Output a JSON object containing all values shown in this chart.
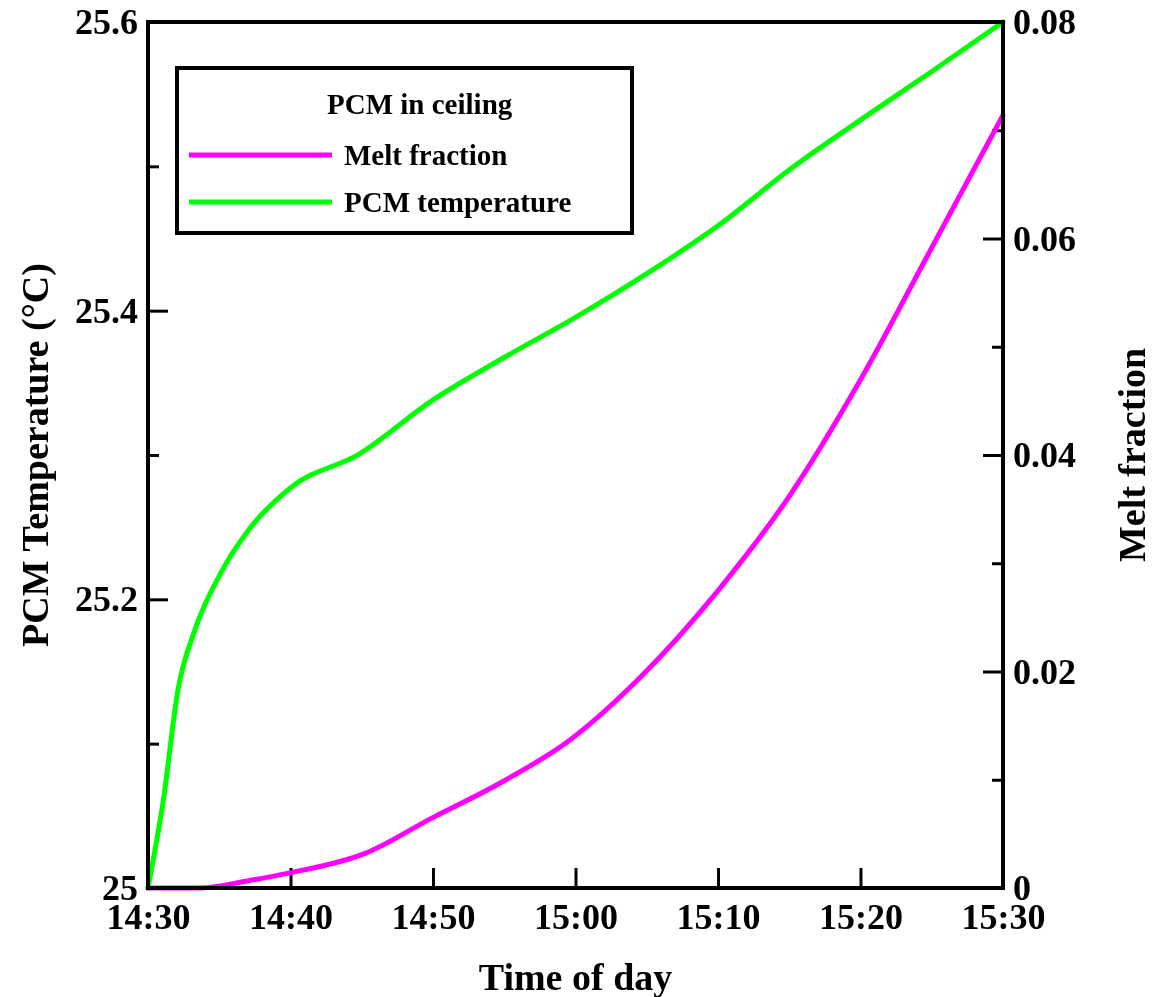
{
  "chart_data": {
    "type": "line",
    "xlabel": "Time of day",
    "ylabel": "PCM Temperature (°C)",
    "y2label": "Melt fraction",
    "legend_title": "PCM in ceiling",
    "legend": "top left",
    "grid": false,
    "xlim": [
      14.5,
      15.5
    ],
    "xticks": [
      {
        "value": 14.5,
        "label": "14:30"
      },
      {
        "value": 14.6667,
        "label": "14:40"
      },
      {
        "value": 14.8333,
        "label": "14:50"
      },
      {
        "value": 15.0,
        "label": "15:00"
      },
      {
        "value": 15.1667,
        "label": "15:10"
      },
      {
        "value": 15.3333,
        "label": "15:20"
      },
      {
        "value": 15.5,
        "label": "15:30"
      }
    ],
    "ylim": [
      25,
      25.6
    ],
    "yticks": [
      25,
      {
        "value": 25.1,
        "label": null
      },
      25.2,
      {
        "value": 25.3,
        "label": null
      },
      25.4,
      {
        "value": 25.5,
        "label": null
      },
      25.6
    ],
    "y2lim": [
      0,
      0.08
    ],
    "y2ticks": [
      0,
      {
        "value": 0.01,
        "label": null
      },
      0.02,
      {
        "value": 0.03,
        "label": null
      },
      0.04,
      {
        "value": 0.05,
        "label": null
      },
      0.06,
      {
        "value": 0.07,
        "label": null
      },
      0.08
    ],
    "series": [
      {
        "name": "Melt fraction",
        "color": "#ff00ff",
        "axis": "y2",
        "x": [
          14.5,
          14.561,
          14.619,
          14.666,
          14.754,
          14.833,
          14.912,
          14.994,
          15.075,
          15.167,
          15.251,
          15.333,
          15.415,
          15.5
        ],
        "values": [
          0,
          0,
          0.0007,
          0.0014,
          0.0032,
          0.0065,
          0.0097,
          0.0137,
          0.0194,
          0.0275,
          0.0363,
          0.0469,
          0.0589,
          0.0714
        ]
      },
      {
        "name": "PCM temperature",
        "color": "#00ff00",
        "x": [
          14.5,
          14.518,
          14.535,
          14.555,
          14.584,
          14.619,
          14.666,
          14.748,
          14.833,
          14.912,
          14.999,
          15.087,
          15.167,
          15.251,
          15.333,
          15.415,
          15.5
        ],
        "values": [
          25,
          25.061,
          25.137,
          25.179,
          25.217,
          25.249,
          25.277,
          25.301,
          25.338,
          25.366,
          25.395,
          25.427,
          25.459,
          25.498,
          25.532,
          25.565,
          25.6
        ]
      }
    ]
  }
}
